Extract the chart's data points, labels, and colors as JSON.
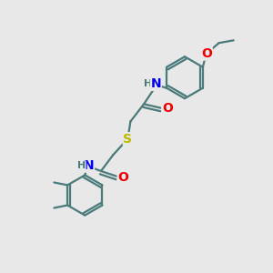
{
  "background_color": "#e8e8e8",
  "bond_color": "#4a7a7a",
  "atom_colors": {
    "N": "#0000ee",
    "O": "#ee0000",
    "S": "#bbbb00",
    "H_label": "#4a7a7a",
    "C": "#4a7a7a"
  },
  "figsize": [
    3.0,
    3.0
  ],
  "dpi": 100
}
